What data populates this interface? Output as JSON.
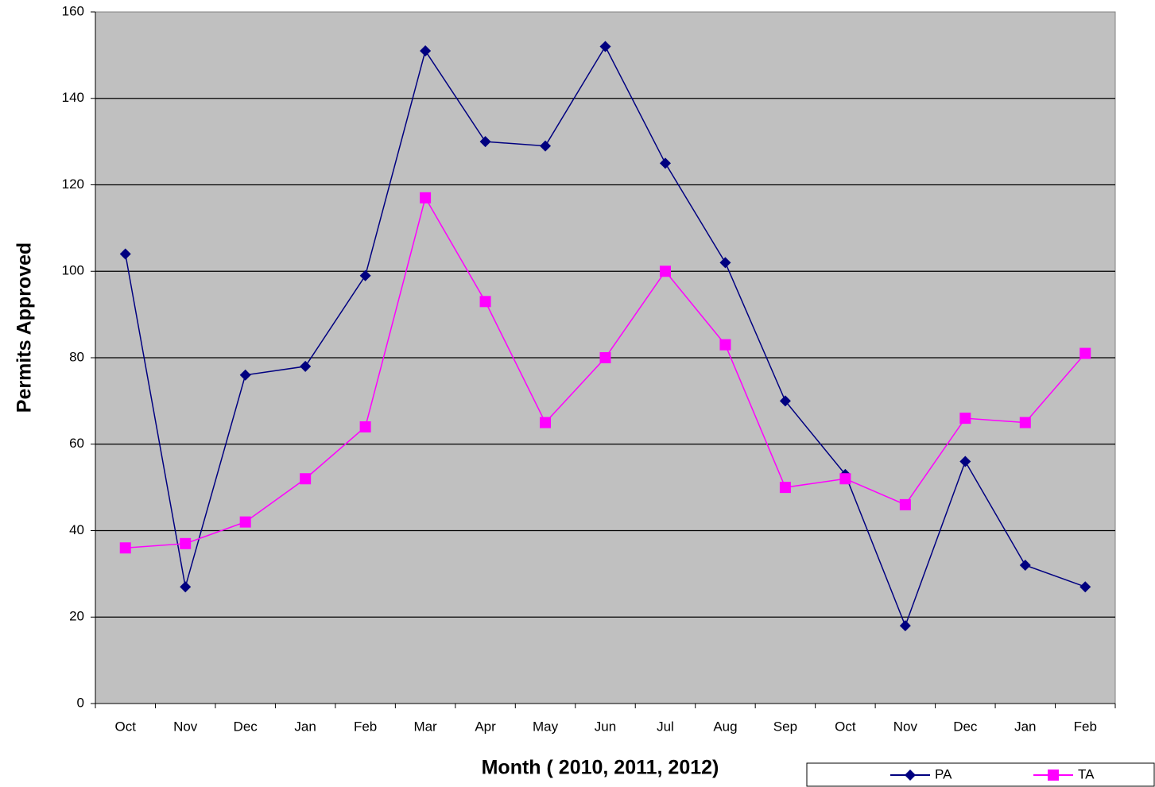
{
  "chart_data": {
    "type": "line",
    "x_label": "Month ( 2010, 2011, 2012)",
    "y_label": "Permits Approved",
    "categories": [
      "Oct",
      "Nov",
      "Dec",
      "Jan",
      "Feb",
      "Mar",
      "Apr",
      "May",
      "Jun",
      "Jul",
      "Aug",
      "Sep",
      "Oct",
      "Nov",
      "Dec",
      "Jan",
      "Feb"
    ],
    "series": [
      {
        "name": "PA",
        "color": "#000080",
        "marker": "diamond",
        "values": [
          104,
          27,
          76,
          78,
          99,
          151,
          130,
          129,
          152,
          125,
          102,
          70,
          53,
          18,
          56,
          32,
          27
        ]
      },
      {
        "name": "TA",
        "color": "#ff00ff",
        "marker": "square",
        "values": [
          36,
          37,
          42,
          52,
          64,
          117,
          93,
          65,
          80,
          100,
          83,
          50,
          52,
          46,
          66,
          65,
          81
        ]
      }
    ],
    "ylim": [
      0,
      160
    ],
    "yticks": [
      0,
      20,
      40,
      60,
      80,
      100,
      120,
      140,
      160
    ],
    "grid": true,
    "background": "#c0c0c0",
    "legend": "bottom-right"
  }
}
